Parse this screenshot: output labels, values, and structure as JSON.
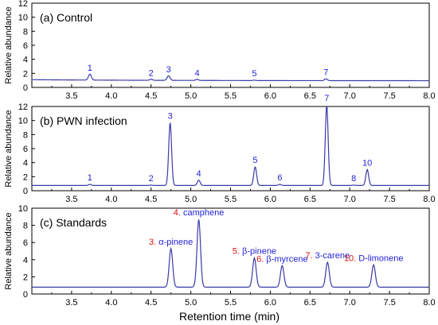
{
  "colors": {
    "trace": "#3a3aaa",
    "peak_label": "#1f1fd6",
    "number_red": "#e01010",
    "axis": "#000000"
  },
  "shared": {
    "ylabel": "Relative abundance",
    "xlabel": "Retention time (min)",
    "xticks": [
      "3.5",
      "4.0",
      "4.5",
      "5.0",
      "5.5",
      "6.0",
      "6.5",
      "7.0",
      "7.5",
      "8.0"
    ]
  },
  "chart_data": [
    {
      "type": "line",
      "title": "(a)  Control",
      "xlim": [
        3.0,
        8.0
      ],
      "ylim": [
        0,
        12
      ],
      "yticks": [
        "0",
        "2",
        "4",
        "6",
        "8",
        "10",
        "12"
      ],
      "baseline": 0.95,
      "peaks": [
        {
          "label": "1",
          "x": 3.73,
          "height": 1.8
        },
        {
          "label": "2",
          "x": 4.5,
          "height": 1.1
        },
        {
          "label": "3",
          "x": 4.72,
          "height": 1.6
        },
        {
          "label": "4",
          "x": 5.08,
          "height": 1.1
        },
        {
          "label": "5",
          "x": 5.8,
          "height": 1.0
        },
        {
          "label": "7",
          "x": 6.7,
          "height": 1.2
        }
      ]
    },
    {
      "type": "line",
      "title": "(b)  PWN infection",
      "xlim": [
        3.0,
        8.0
      ],
      "ylim": [
        0,
        12
      ],
      "yticks": [
        "0",
        "2",
        "4",
        "6",
        "8",
        "10",
        "12"
      ],
      "baseline": 0.75,
      "peaks": [
        {
          "label": "1",
          "x": 3.73,
          "height": 0.9
        },
        {
          "label": "2",
          "x": 4.5,
          "height": 0.8
        },
        {
          "label": "3",
          "x": 4.74,
          "height": 9.7
        },
        {
          "label": "4",
          "x": 5.1,
          "height": 1.5
        },
        {
          "label": "5",
          "x": 5.81,
          "height": 3.4
        },
        {
          "label": "6",
          "x": 6.12,
          "height": 0.9
        },
        {
          "label": "7",
          "x": 6.71,
          "height": 12.2
        },
        {
          "label": "8",
          "x": 7.05,
          "height": 0.8
        },
        {
          "label": "10",
          "x": 7.22,
          "height": 3.0
        }
      ]
    },
    {
      "type": "line",
      "title": "(c)  Standards",
      "xlim": [
        3.0,
        8.0
      ],
      "ylim": [
        0,
        10
      ],
      "yticks": [
        "0",
        "2",
        "4",
        "6",
        "8",
        "10"
      ],
      "baseline": 0.8,
      "peaks": [
        {
          "num": "3.",
          "name": "α-pinene",
          "x": 4.75,
          "height": 5.3
        },
        {
          "num": "4.",
          "name": "camphene",
          "x": 5.1,
          "height": 8.7
        },
        {
          "num": "5.",
          "name": "β-pinene",
          "x": 5.8,
          "height": 4.2
        },
        {
          "num": "6.",
          "name": "β-myrcene",
          "x": 6.15,
          "height": 3.3
        },
        {
          "num": "7.",
          "name": "3-carene",
          "x": 6.72,
          "height": 3.7
        },
        {
          "num": "10.",
          "name": "D-limonene",
          "x": 7.3,
          "height": 3.4
        }
      ]
    }
  ]
}
